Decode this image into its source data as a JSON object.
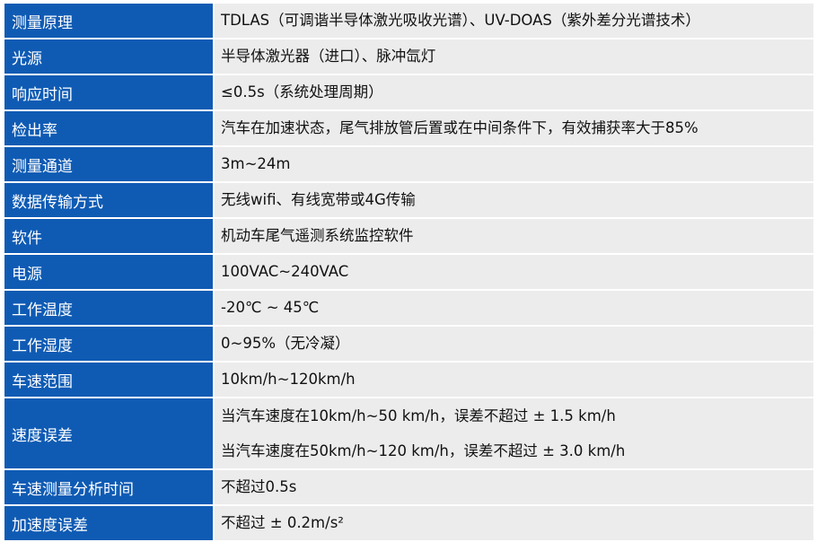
{
  "table": {
    "rows": [
      {
        "label": "测量原理",
        "values": [
          "TDLAS（可调谐半导体激光吸收光谱）、UV-DOAS（紫外差分光谱技术）"
        ]
      },
      {
        "label": "光源",
        "values": [
          "半导体激光器（进口）、脉冲氙灯"
        ]
      },
      {
        "label": "响应时间",
        "values": [
          "≤0.5s（系统处理周期）"
        ]
      },
      {
        "label": "检出率",
        "values": [
          "汽车在加速状态，尾气排放管后置或在中间条件下，有效捕获率大于85%"
        ]
      },
      {
        "label": "测量通道",
        "values": [
          "3m~24m"
        ]
      },
      {
        "label": "数据传输方式",
        "values": [
          "无线wifi、有线宽带或4G传输"
        ]
      },
      {
        "label": "软件",
        "values": [
          "机动车尾气遥测系统监控软件"
        ]
      },
      {
        "label": "电源",
        "values": [
          "100VAC~240VAC"
        ]
      },
      {
        "label": "工作温度",
        "values": [
          "-20℃ ~ 45℃"
        ]
      },
      {
        "label": "工作湿度",
        "values": [
          "0~95%（无冷凝）"
        ]
      },
      {
        "label": "车速范围",
        "values": [
          "10km/h~120km/h"
        ]
      },
      {
        "label": "速度误差",
        "values": [
          "当汽车速度在10km/h~50 km/h，误差不超过 ± 1.5 km/h",
          "当汽车速度在50km/h~120 km/h，误差不超过 ± 3.0 km/h"
        ]
      },
      {
        "label": "车速测量分析时间",
        "values": [
          "不超过0.5s"
        ]
      },
      {
        "label": "加速度误差",
        "values": [
          "不超过 ± 0.2m/s²"
        ]
      }
    ]
  }
}
